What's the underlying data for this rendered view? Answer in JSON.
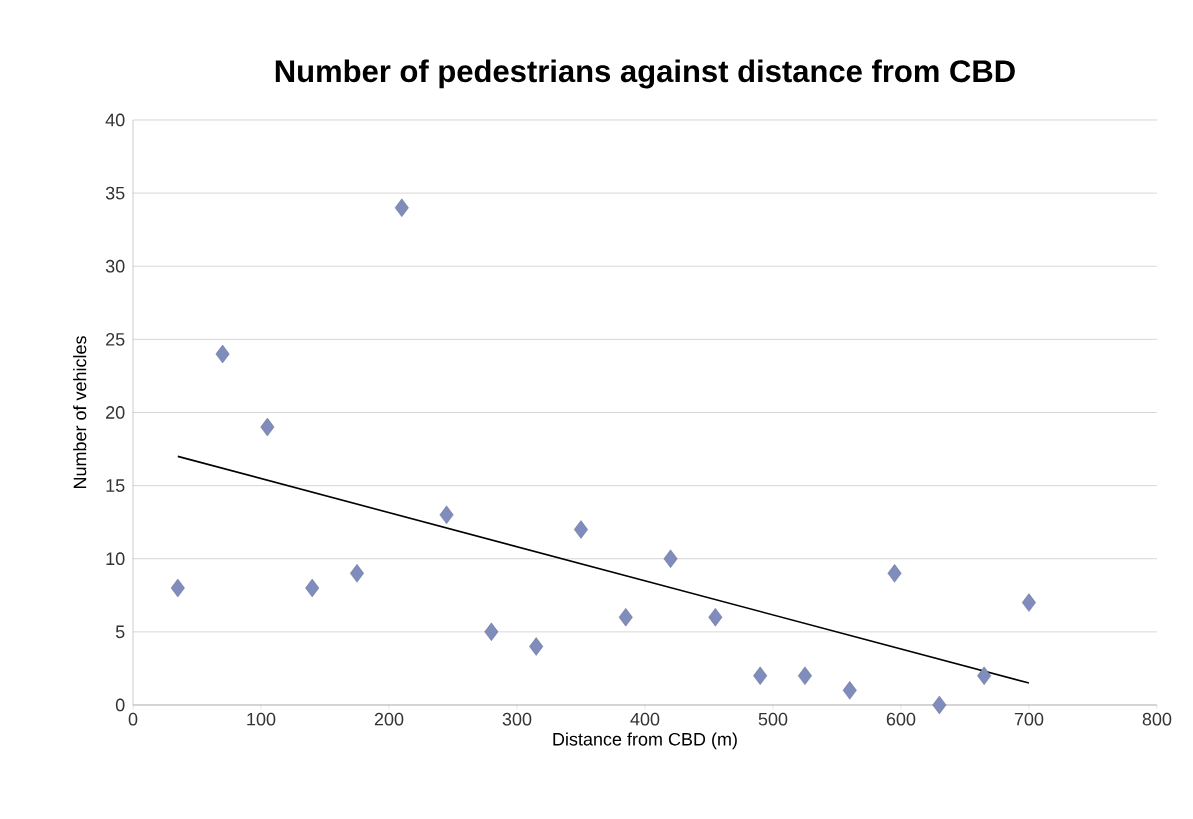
{
  "chart_data": {
    "type": "scatter",
    "title": "Number of pedestrians against distance from CBD",
    "xlabel": "Distance from CBD (m)",
    "ylabel": "Number of vehicles",
    "xlim": [
      0,
      800
    ],
    "xticks": [
      0,
      100,
      200,
      300,
      400,
      500,
      600,
      700,
      800
    ],
    "ylim": [
      0,
      40
    ],
    "yticks": [
      0,
      5,
      10,
      15,
      20,
      25,
      30,
      35,
      40
    ],
    "grid": "y",
    "marker": "diamond",
    "series": [
      {
        "color": "#7f8cbc",
        "x": [
          35,
          70,
          105,
          140,
          175,
          210,
          245,
          280,
          315,
          350,
          385,
          420,
          455,
          490,
          525,
          560,
          595,
          630,
          665,
          700
        ],
        "values": [
          8,
          24,
          19,
          8,
          9,
          34,
          13,
          5,
          4,
          12,
          6,
          10,
          6,
          2,
          2,
          1,
          9,
          0,
          2,
          7
        ]
      },
      {
        "type": "line",
        "color": "#000000",
        "marker": "none",
        "x": [
          35,
          700
        ],
        "values": [
          17,
          1.5
        ]
      }
    ]
  }
}
